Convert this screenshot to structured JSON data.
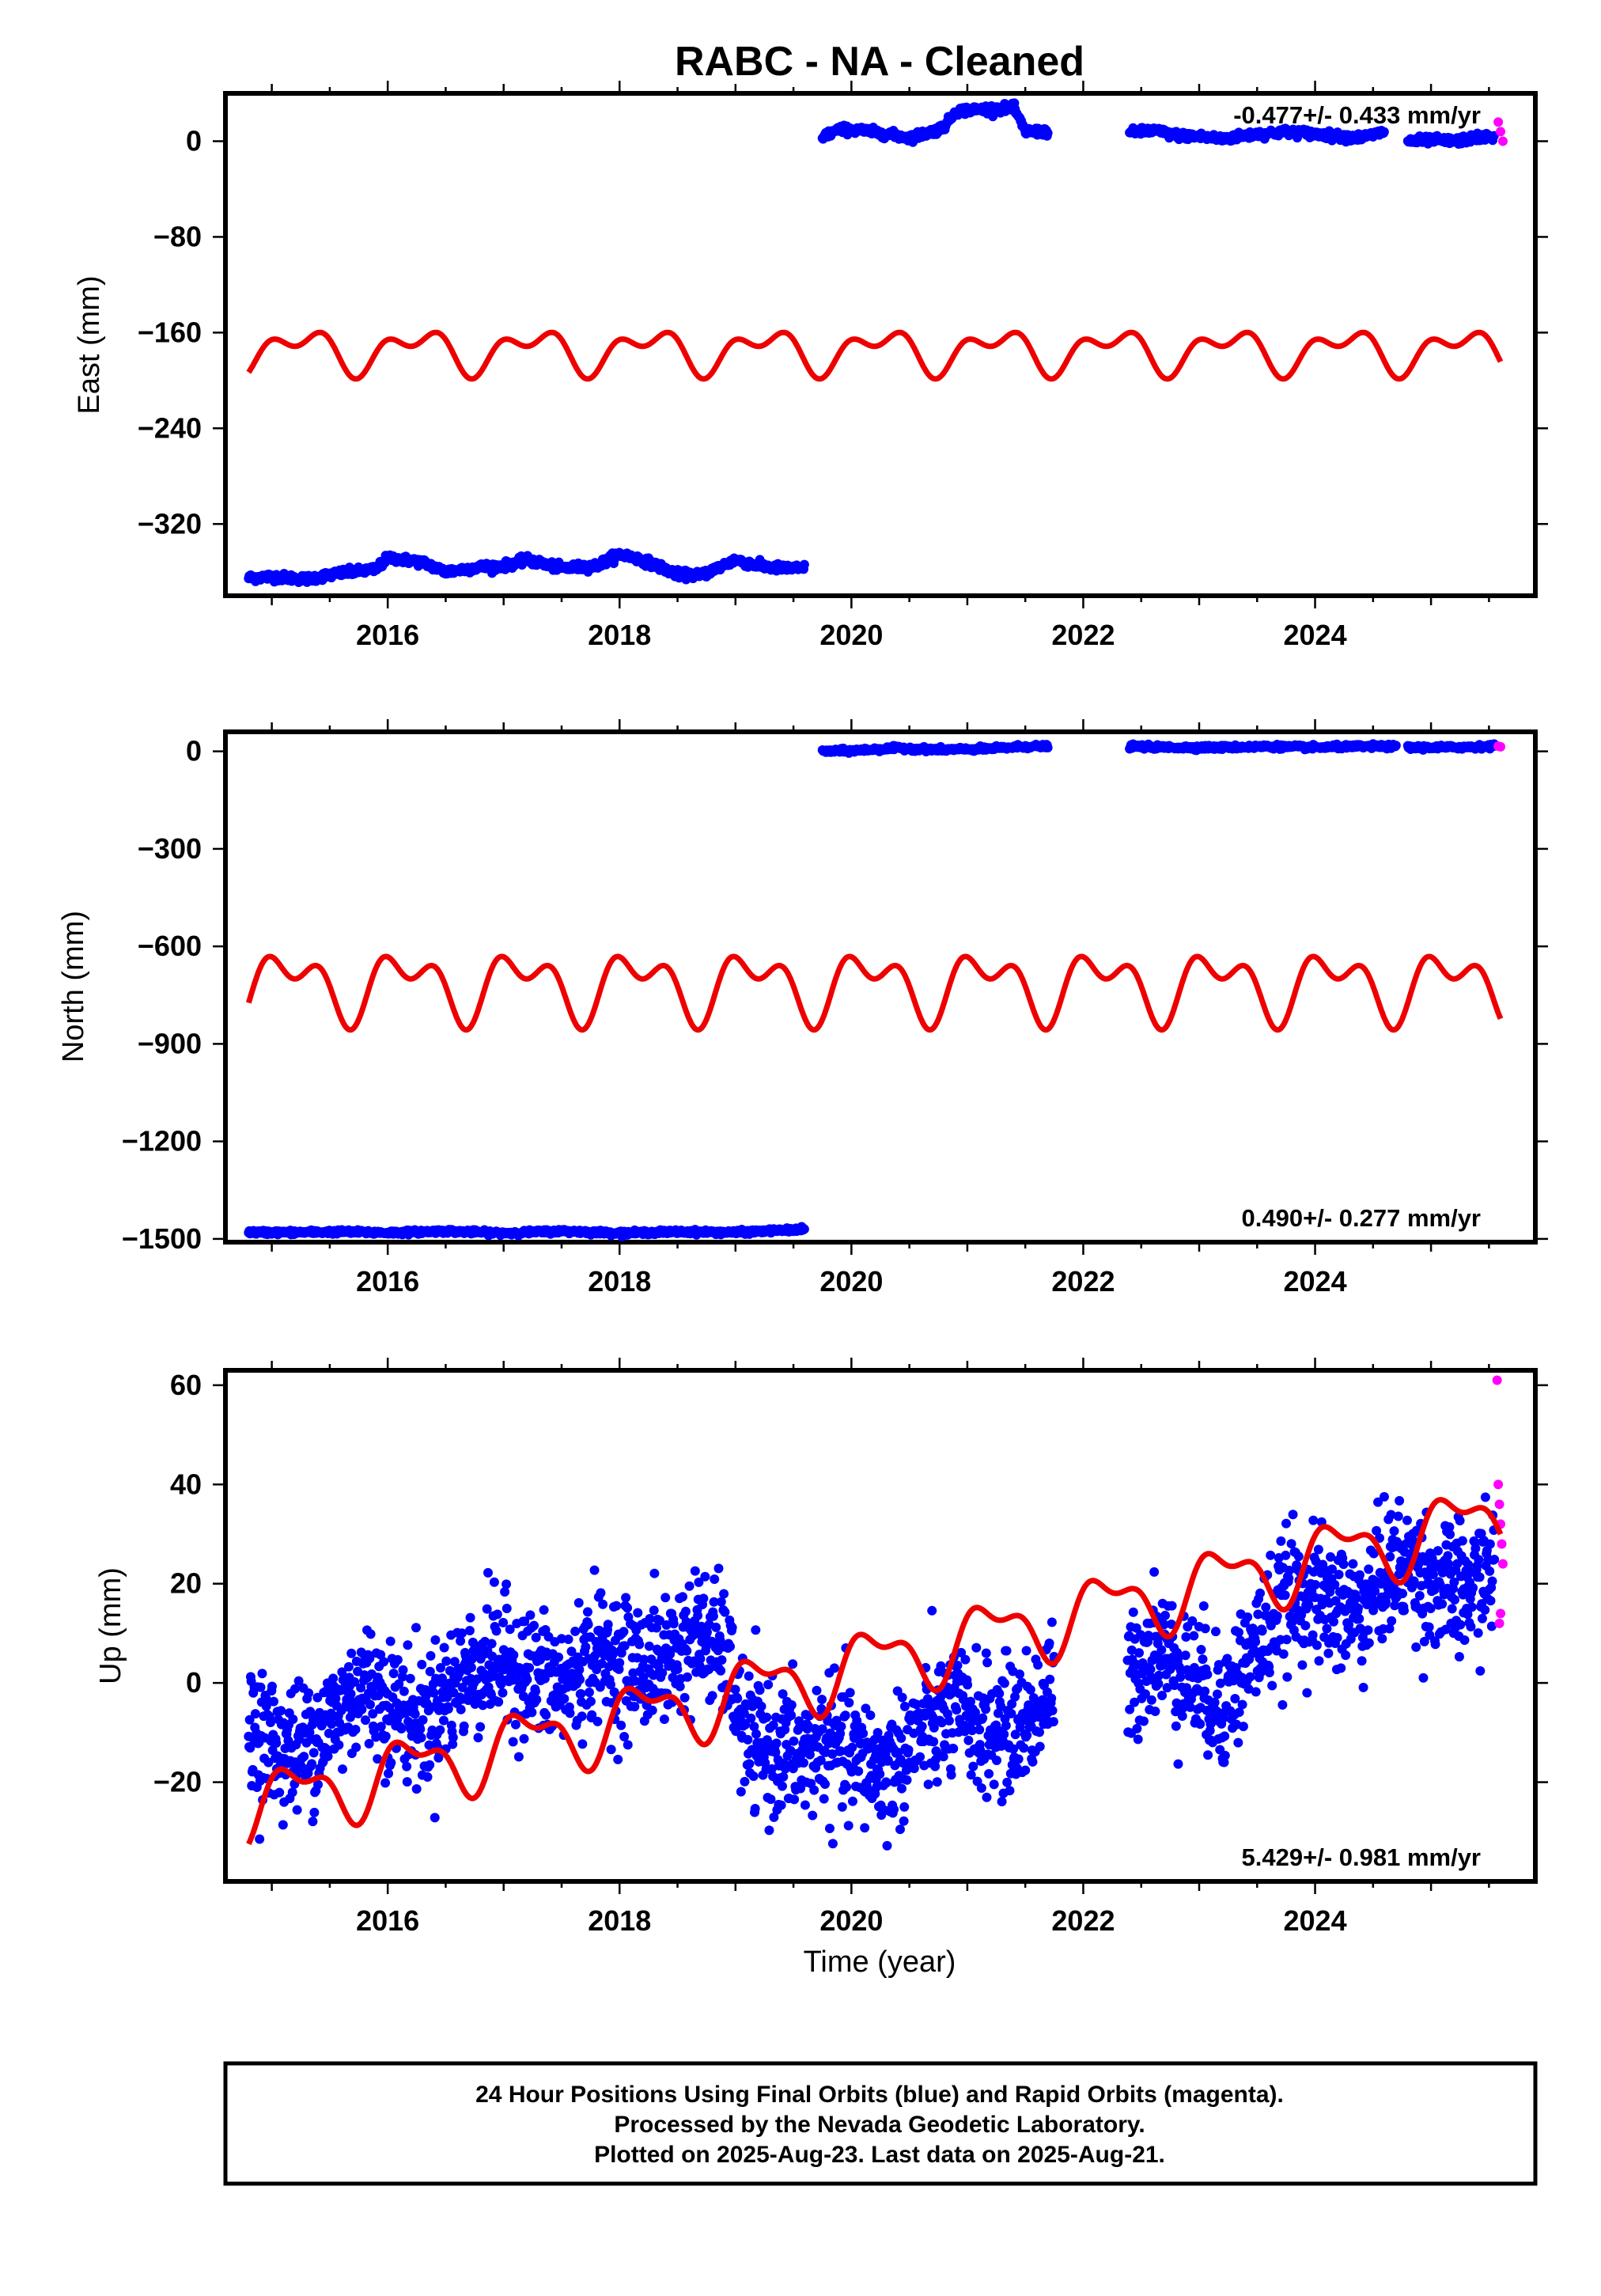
{
  "title": "RABC  - NA - Cleaned",
  "x_axis_label": "Time (year)",
  "footer": {
    "line1": "24 Hour Positions Using Final Orbits (blue) and Rapid Orbits (magenta).",
    "line2": "Processed by the Nevada Geodetic Laboratory.",
    "line3": "Plotted on 2025-Aug-23. Last data on 2025-Aug-21."
  },
  "colors": {
    "final": "#0000ff",
    "rapid": "#ff00ff",
    "model": "#ee0000"
  },
  "chart_data": [
    {
      "type": "scatter",
      "name": "east",
      "ylabel": "East (mm)",
      "xlim": [
        2014.6,
        2025.9
      ],
      "ylim": [
        -380,
        40
      ],
      "xticks": [
        2016,
        2018,
        2020,
        2022,
        2024
      ],
      "yticks": [
        0,
        -80,
        -160,
        -240,
        -320
      ],
      "ytick_labels": [
        "0",
        "-80",
        "-160",
        "-240",
        "-320"
      ],
      "rate_text": "-0.477+/- 0.433 mm/yr",
      "rate_position": "top-right",
      "final_segments": [
        {
          "x": [
            2014.8,
            2015.0,
            2015.3,
            2015.6,
            2015.9,
            2016.0,
            2016.3,
            2016.5,
            2016.8,
            2017.0,
            2017.2,
            2017.5,
            2017.8,
            2018.0,
            2018.2,
            2018.5,
            2018.7,
            2019.0,
            2019.2,
            2019.4,
            2019.6
          ],
          "y": [
            -365,
            -364,
            -366,
            -361,
            -358,
            -348,
            -352,
            -360,
            -356,
            -355,
            -350,
            -357,
            -355,
            -345,
            -350,
            -362,
            -363,
            -350,
            -355,
            -357,
            -357
          ]
        },
        {
          "x": [
            2019.75,
            2019.9,
            2020.1,
            2020.3,
            2020.5,
            2020.7,
            2020.8,
            2020.9,
            2021.0,
            2021.2,
            2021.4,
            2021.5,
            2021.7
          ],
          "y": [
            4,
            10,
            9,
            6,
            3,
            8,
            12,
            25,
            26,
            27,
            28,
            8,
            8
          ]
        },
        {
          "x": [
            2022.4,
            2022.6,
            2022.8,
            2023.0,
            2023.2,
            2023.5,
            2023.8,
            2024.0,
            2024.2,
            2024.4,
            2024.6
          ],
          "y": [
            7,
            9,
            5,
            4,
            2,
            6,
            8,
            6,
            4,
            3,
            8
          ]
        },
        {
          "x": [
            2024.8,
            2025.0,
            2025.2,
            2025.4,
            2025.55
          ],
          "y": [
            0,
            1,
            0,
            3,
            4
          ]
        }
      ],
      "rapid": {
        "x": [
          2025.58,
          2025.6,
          2025.62
        ],
        "y": [
          16,
          8,
          0
        ]
      },
      "model": {
        "start": 2014.8,
        "end": 2025.6,
        "offset": -175,
        "trend": 0,
        "a1": 14,
        "a2": 10,
        "phase1": 0.0,
        "phase2": 2.0
      }
    },
    {
      "type": "scatter",
      "name": "north",
      "ylabel": "North (mm)",
      "xlim": [
        2014.6,
        2025.9
      ],
      "ylim": [
        -1510,
        60
      ],
      "xticks": [
        2016,
        2018,
        2020,
        2022,
        2024
      ],
      "yticks": [
        0,
        -300,
        -600,
        -900,
        -1200,
        -1500
      ],
      "ytick_labels": [
        "0",
        "-300",
        "-600",
        "-900",
        "-1200",
        "-1500"
      ],
      "rate_text": "0.490+/- 0.277 mm/yr",
      "rate_position": "bottom-right",
      "final_segments": [
        {
          "x": [
            2014.8,
            2015.2,
            2015.6,
            2016.0,
            2016.5,
            2017.0,
            2017.5,
            2018.0,
            2018.5,
            2019.0,
            2019.4,
            2019.6
          ],
          "y": [
            -1480,
            -1480,
            -1478,
            -1481,
            -1476,
            -1482,
            -1476,
            -1482,
            -1478,
            -1480,
            -1474,
            -1470
          ]
        },
        {
          "x": [
            2019.75,
            2020.0,
            2020.4,
            2020.8,
            2021.2,
            2021.5,
            2021.7
          ],
          "y": [
            0,
            2,
            10,
            5,
            8,
            15,
            15
          ]
        },
        {
          "x": [
            2022.4,
            2022.8,
            2023.2,
            2023.6,
            2024.0,
            2024.4,
            2024.7
          ],
          "y": [
            15,
            12,
            12,
            15,
            12,
            15,
            15
          ]
        },
        {
          "x": [
            2024.8,
            2025.1,
            2025.4,
            2025.55
          ],
          "y": [
            12,
            12,
            14,
            16
          ]
        }
      ],
      "rapid": {
        "x": [
          2025.58,
          2025.6
        ],
        "y": [
          16,
          14
        ]
      },
      "model": {
        "start": 2014.8,
        "end": 2025.6,
        "offset": -718,
        "trend": 0,
        "a1": 80,
        "a2": 60,
        "phase1": 0.6,
        "phase2": 2.4
      }
    },
    {
      "type": "scatter",
      "name": "up",
      "ylabel": "Up (mm)",
      "xlim": [
        2014.6,
        2025.9
      ],
      "ylim": [
        -40,
        63
      ],
      "xticks": [
        2016,
        2018,
        2020,
        2022,
        2024
      ],
      "yticks": [
        60,
        40,
        20,
        0,
        -20
      ],
      "ytick_labels": [
        "60",
        "40",
        "20",
        "0",
        "-20"
      ],
      "rate_text": "5.429+/- 0.981 mm/yr",
      "rate_position": "bottom-right",
      "final_trend": [
        [
          2014.8,
          -8
        ],
        [
          2015.0,
          -12
        ],
        [
          2015.2,
          -14
        ],
        [
          2015.5,
          -8
        ],
        [
          2015.8,
          0
        ],
        [
          2016.0,
          -4
        ],
        [
          2016.3,
          -8
        ],
        [
          2016.6,
          0
        ],
        [
          2016.9,
          5
        ],
        [
          2017.2,
          2
        ],
        [
          2017.5,
          -1
        ],
        [
          2017.8,
          6
        ],
        [
          2018.1,
          3
        ],
        [
          2018.4,
          5
        ],
        [
          2018.7,
          10
        ],
        [
          2018.9,
          6
        ],
        [
          2019.1,
          -12
        ],
        [
          2019.4,
          -14
        ],
        [
          2019.6,
          -15
        ],
        [
          2019.75,
          -12
        ],
        [
          2020.0,
          -15
        ],
        [
          2020.3,
          -18
        ],
        [
          2020.6,
          -10
        ],
        [
          2020.9,
          -6
        ],
        [
          2021.2,
          -10
        ],
        [
          2021.5,
          -8
        ],
        [
          2021.7,
          -2
        ],
        [
          2022.4,
          0
        ],
        [
          2022.6,
          8
        ],
        [
          2022.9,
          2
        ],
        [
          2023.2,
          -5
        ],
        [
          2023.5,
          8
        ],
        [
          2023.8,
          18
        ],
        [
          2024.1,
          16
        ],
        [
          2024.4,
          14
        ],
        [
          2024.6,
          22
        ],
        [
          2024.8,
          24
        ],
        [
          2025.0,
          20
        ],
        [
          2025.3,
          18
        ],
        [
          2025.55,
          24
        ]
      ],
      "rapid": {
        "x": [
          2025.57,
          2025.58,
          2025.59,
          2025.6,
          2025.61,
          2025.62,
          2025.6,
          2025.59
        ],
        "y": [
          61,
          40,
          36,
          32,
          28,
          24,
          14,
          12
        ]
      },
      "model": {
        "start": 2014.8,
        "end": 2025.6,
        "offset": -25,
        "trend": 5.43,
        "a1": 6,
        "a2": 3,
        "phase1": 0.3,
        "phase2": 1.5
      }
    }
  ]
}
